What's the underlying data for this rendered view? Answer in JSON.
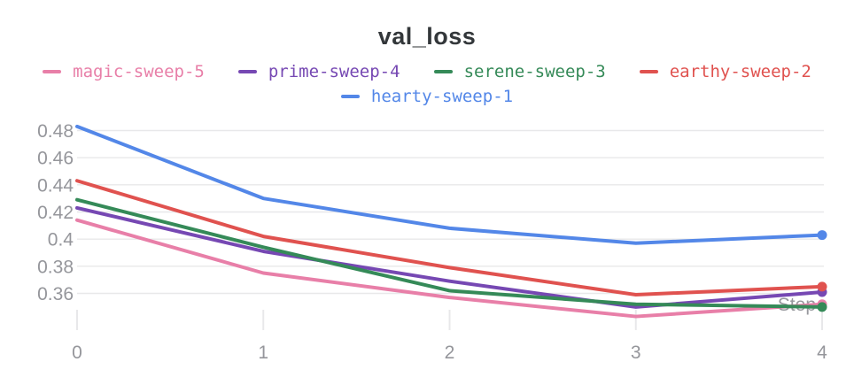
{
  "title": "val_loss",
  "chart_data": {
    "type": "line",
    "title": "val_loss",
    "xlabel": "Step",
    "ylabel": "",
    "x": [
      0,
      1,
      2,
      3,
      4
    ],
    "series": [
      {
        "name": "magic-sweep-5",
        "color": "#e87fa8",
        "values": [
          0.414,
          0.375,
          0.357,
          0.343,
          0.352
        ]
      },
      {
        "name": "prime-sweep-4",
        "color": "#7648b3",
        "values": [
          0.423,
          0.391,
          0.369,
          0.35,
          0.361
        ]
      },
      {
        "name": "serene-sweep-3",
        "color": "#358a58",
        "values": [
          0.429,
          0.394,
          0.362,
          0.352,
          0.35
        ]
      },
      {
        "name": "earthy-sweep-2",
        "color": "#e0524f",
        "values": [
          0.443,
          0.402,
          0.379,
          0.359,
          0.365
        ]
      },
      {
        "name": "hearty-sweep-1",
        "color": "#5387e8",
        "values": [
          0.483,
          0.43,
          0.408,
          0.397,
          0.403
        ]
      }
    ],
    "ylim": [
      0.36,
      0.48
    ],
    "yticks": [
      "0.48",
      "0.46",
      "0.44",
      "0.42",
      "0.4",
      "0.38",
      "0.36"
    ],
    "xticks": [
      "0",
      "1",
      "2",
      "3",
      "4"
    ],
    "grid": true,
    "legend_position": "top",
    "end_markers": true
  },
  "legend": {
    "rows": [
      [
        "magic-sweep-5",
        "prime-sweep-4",
        "serene-sweep-3",
        "earthy-sweep-2"
      ],
      [
        "hearty-sweep-1"
      ]
    ]
  },
  "colors": {
    "title_text": "#33373a",
    "tick_text": "#95969b",
    "gridline": "#e8e8ea",
    "axis_title_text": "#97989d"
  }
}
